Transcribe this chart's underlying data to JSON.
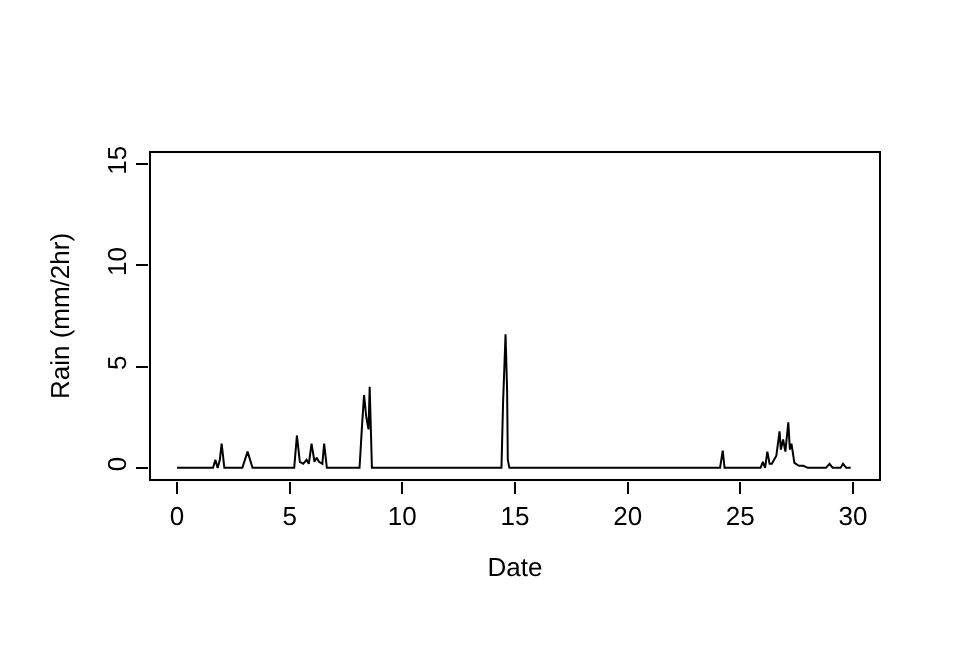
{
  "chart_data": {
    "type": "line",
    "xlabel": "Date",
    "ylabel": "Rain (mm/2hr)",
    "color": "#000000",
    "x": [
      0,
      1.6,
      1.7,
      1.8,
      1.9,
      1.98,
      2.1,
      2.9,
      3.13,
      3.35,
      5.2,
      5.32,
      5.45,
      5.6,
      5.75,
      5.85,
      5.97,
      6.1,
      6.2,
      6.3,
      6.45,
      6.53,
      6.65,
      8.1,
      8.2,
      8.3,
      8.4,
      8.5,
      8.55,
      8.65,
      14.4,
      14.47,
      14.58,
      14.65,
      14.68,
      14.75,
      24.1,
      24.22,
      24.3,
      25.9,
      26.0,
      26.1,
      26.2,
      26.3,
      26.4,
      26.6,
      26.74,
      26.8,
      26.9,
      27.0,
      27.13,
      27.2,
      27.27,
      27.4,
      27.6,
      27.8,
      28.0,
      28.8,
      28.96,
      29.1,
      29.45,
      29.56,
      29.7,
      29.9
    ],
    "values": [
      0,
      0,
      0.4,
      0,
      0.4,
      1.2,
      0,
      0,
      0.8,
      0,
      0,
      1.6,
      0.3,
      0.2,
      0.4,
      0.2,
      1.2,
      0.3,
      0.5,
      0.3,
      0.2,
      1.2,
      0,
      0,
      1.9,
      3.6,
      2.5,
      1.9,
      4.0,
      0,
      0,
      3.2,
      6.6,
      3.8,
      0.4,
      0,
      0,
      0.85,
      0,
      0,
      0.3,
      0,
      0.8,
      0.2,
      0.2,
      0.6,
      1.8,
      0.9,
      1.4,
      0.8,
      2.25,
      0.9,
      1.2,
      0.25,
      0.1,
      0.1,
      0,
      0,
      0.2,
      0,
      0,
      0.2,
      0,
      0
    ],
    "xlim": [
      -1.2,
      31.2
    ],
    "ylim": [
      -0.6,
      15.6
    ],
    "xticks": [
      0,
      5,
      10,
      15,
      20,
      25,
      30
    ],
    "yticks": [
      0,
      5,
      10,
      15
    ],
    "grid": false,
    "line_style": "solid",
    "marker": "none"
  }
}
